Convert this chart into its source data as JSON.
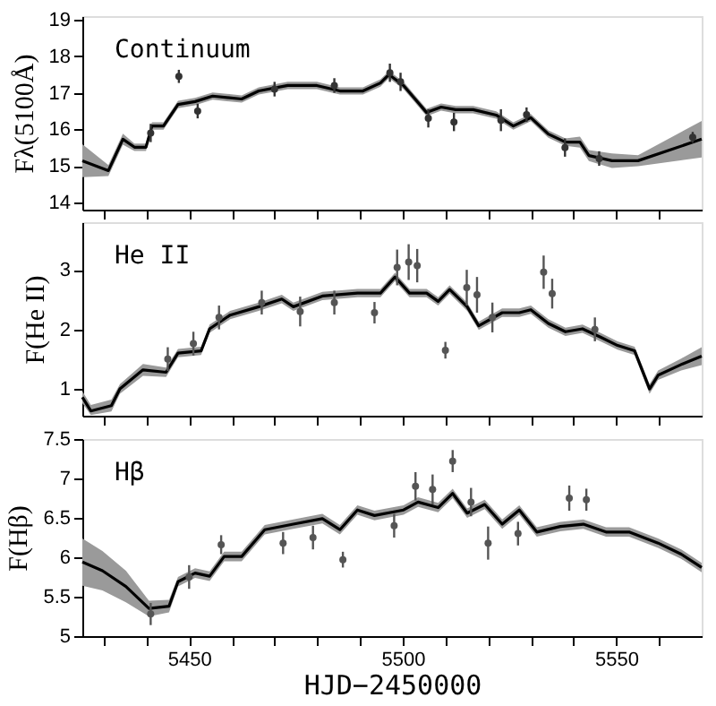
{
  "chart_data": [
    {
      "type": "line",
      "ylabel": "Fλ(5100Å)",
      "annotations": [
        "Continuum"
      ],
      "xlim": [
        5425,
        5570
      ],
      "ylim": [
        13.8,
        19.1
      ],
      "yticks": [
        14,
        15,
        16,
        17,
        18,
        19
      ],
      "xticks": [
        {
          "value": 5430,
          "label": null
        },
        {
          "value": 5440,
          "label": null
        },
        {
          "value": 5450,
          "label": null
        },
        {
          "value": 5460,
          "label": null
        },
        {
          "value": 5470,
          "label": null
        },
        {
          "value": 5480,
          "label": null
        },
        {
          "value": 5490,
          "label": null
        },
        {
          "value": 5500,
          "label": null
        },
        {
          "value": 5510,
          "label": null
        },
        {
          "value": 5520,
          "label": null
        },
        {
          "value": 5530,
          "label": null
        },
        {
          "value": 5540,
          "label": null
        },
        {
          "value": 5550,
          "label": null
        },
        {
          "value": 5560,
          "label": null
        }
      ],
      "tick_labels": "y",
      "grid": false,
      "legend": false,
      "series": [
        {
          "color": "#000000",
          "line_style": "solid",
          "x": [
            5425,
            5431.1,
            5434.5,
            5437.2,
            5439.9,
            5441.3,
            5444,
            5447.4,
            5451.4,
            5455.5,
            5462.3,
            5466.3,
            5473.1,
            5479.9,
            5485.3,
            5490.7,
            5494.8,
            5496.8,
            5500.2,
            5502.9,
            5505.6,
            5509,
            5512.4,
            5516.5,
            5521.9,
            5525.9,
            5530,
            5534.1,
            5538.1,
            5541.5,
            5543.6,
            5549,
            5555.1,
            5570
          ],
          "values": [
            15.14,
            14.87,
            15.73,
            15.51,
            15.51,
            16.09,
            16.09,
            16.68,
            16.76,
            16.91,
            16.83,
            17.05,
            17.2,
            17.2,
            17.05,
            17.05,
            17.27,
            17.5,
            17.2,
            16.83,
            16.46,
            16.61,
            16.54,
            16.54,
            16.39,
            16.09,
            16.32,
            15.87,
            15.65,
            15.65,
            15.28,
            15.14,
            15.14,
            15.73
          ],
          "lower": [
            14.69,
            14.72,
            15.58,
            15.41,
            15.41,
            15.99,
            15.99,
            16.58,
            16.66,
            16.81,
            16.73,
            16.95,
            17.1,
            17.1,
            16.95,
            16.95,
            17.17,
            17.4,
            17.1,
            16.73,
            16.36,
            16.51,
            16.44,
            16.44,
            16.29,
            15.99,
            16.22,
            15.77,
            15.55,
            15.5,
            15.13,
            14.94,
            14.99,
            15.23
          ],
          "upper": [
            15.59,
            15.02,
            15.88,
            15.61,
            15.61,
            16.19,
            16.19,
            16.78,
            16.86,
            17.01,
            16.93,
            17.15,
            17.3,
            17.3,
            17.15,
            17.15,
            17.37,
            17.6,
            17.3,
            16.93,
            16.56,
            16.71,
            16.64,
            16.64,
            16.49,
            16.19,
            16.42,
            15.97,
            15.75,
            15.8,
            15.43,
            15.34,
            15.29,
            16.23
          ]
        },
        {
          "type": "scatter",
          "color": "#333333",
          "marker": "circle",
          "x": [
            5441,
            5447.6,
            5452,
            5470,
            5484,
            5497,
            5499.5,
            5506,
            5512,
            5523,
            5529,
            5538,
            5546,
            5567.9
          ],
          "values": [
            15.9,
            17.45,
            16.5,
            17.1,
            17.2,
            17.55,
            17.3,
            16.3,
            16.2,
            16.25,
            16.4,
            15.5,
            15.2,
            15.78
          ],
          "errors": [
            0.25,
            0.18,
            0.2,
            0.2,
            0.2,
            0.25,
            0.25,
            0.25,
            0.25,
            0.3,
            0.2,
            0.25,
            0.2,
            0.15
          ]
        }
      ]
    },
    {
      "type": "line",
      "ylabel": "F(He II)",
      "annotations": [
        "He II"
      ],
      "xlim": [
        5425,
        5570
      ],
      "ylim": [
        0.55,
        3.8
      ],
      "yticks": [
        1,
        2,
        3
      ],
      "xticks": [
        {
          "value": 5430,
          "label": null
        },
        {
          "value": 5440,
          "label": null
        },
        {
          "value": 5450,
          "label": null
        },
        {
          "value": 5460,
          "label": null
        },
        {
          "value": 5470,
          "label": null
        },
        {
          "value": 5480,
          "label": null
        },
        {
          "value": 5490,
          "label": null
        },
        {
          "value": 5500,
          "label": null
        },
        {
          "value": 5510,
          "label": null
        },
        {
          "value": 5520,
          "label": null
        },
        {
          "value": 5530,
          "label": null
        },
        {
          "value": 5540,
          "label": null
        },
        {
          "value": 5550,
          "label": null
        },
        {
          "value": 5560,
          "label": null
        }
      ],
      "tick_labels": "y",
      "grid": false,
      "legend": false,
      "series": [
        {
          "color": "#000000",
          "line_style": "solid",
          "x": [
            5425,
            5427,
            5431.8,
            5433.8,
            5439.2,
            5444.6,
            5447.4,
            5452.8,
            5454.8,
            5459.6,
            5466.3,
            5471.7,
            5474.4,
            5481.2,
            5489.4,
            5494.8,
            5498.2,
            5501.6,
            5505.6,
            5508.3,
            5511,
            5515.1,
            5517.8,
            5523.3,
            5527.3,
            5530,
            5534.1,
            5538.1,
            5542.1,
            5546.3,
            5550.3,
            5554.3,
            5557.8,
            5559.8,
            5565.2,
            5570
          ],
          "values": [
            0.86,
            0.63,
            0.72,
            1.0,
            1.32,
            1.28,
            1.6,
            1.64,
            2.01,
            2.24,
            2.38,
            2.51,
            2.38,
            2.56,
            2.61,
            2.61,
            2.88,
            2.61,
            2.61,
            2.47,
            2.67,
            2.38,
            2.06,
            2.28,
            2.28,
            2.33,
            2.1,
            1.96,
            2.01,
            1.87,
            1.73,
            1.64,
            1.0,
            1.23,
            1.41,
            1.55
          ],
          "lower": [
            0.76,
            0.56,
            0.62,
            0.92,
            1.22,
            1.2,
            1.53,
            1.57,
            1.94,
            2.17,
            2.31,
            2.44,
            2.31,
            2.49,
            2.54,
            2.54,
            2.81,
            2.54,
            2.54,
            2.4,
            2.6,
            2.31,
            1.99,
            2.21,
            2.21,
            2.26,
            2.03,
            1.89,
            1.94,
            1.8,
            1.66,
            1.57,
            0.92,
            1.15,
            1.31,
            1.4
          ],
          "upper": [
            0.96,
            0.73,
            0.82,
            1.08,
            1.42,
            1.36,
            1.67,
            1.71,
            2.08,
            2.31,
            2.45,
            2.58,
            2.45,
            2.63,
            2.68,
            2.68,
            2.95,
            2.68,
            2.68,
            2.54,
            2.74,
            2.45,
            2.13,
            2.35,
            2.35,
            2.4,
            2.17,
            2.03,
            2.08,
            1.94,
            1.8,
            1.71,
            1.08,
            1.31,
            1.51,
            1.7
          ]
        },
        {
          "type": "scatter",
          "color": "#555555",
          "marker": "circle",
          "x": [
            5445,
            5451,
            5457,
            5467,
            5476,
            5484,
            5493.4,
            5498.7,
            5501.4,
            5503.4,
            5510,
            5515,
            5517.4,
            5521,
            5533,
            5535,
            5545
          ],
          "values": [
            1.5,
            1.76,
            2.2,
            2.45,
            2.3,
            2.45,
            2.28,
            3.04,
            3.13,
            3.07,
            1.65,
            2.7,
            2.58,
            2.2,
            2.96,
            2.6,
            2.0
          ],
          "errors": [
            0.2,
            0.2,
            0.2,
            0.2,
            0.25,
            0.2,
            0.18,
            0.3,
            0.3,
            0.28,
            0.14,
            0.3,
            0.3,
            0.25,
            0.28,
            0.25,
            0.2
          ]
        }
      ]
    },
    {
      "type": "line",
      "ylabel": "F(Hβ)",
      "xlabel": "HJD−2450000",
      "annotations": [
        "Hβ"
      ],
      "xlim": [
        5425,
        5570
      ],
      "ylim": [
        5,
        7.5
      ],
      "yticks": [
        5,
        5.5,
        6,
        6.5,
        7,
        7.5
      ],
      "xticks": [
        {
          "value": 5430,
          "label": null
        },
        {
          "value": 5440,
          "label": null
        },
        5450,
        {
          "value": 5460,
          "label": null
        },
        {
          "value": 5470,
          "label": null
        },
        {
          "value": 5480,
          "label": null
        },
        {
          "value": 5490,
          "label": null
        },
        5500,
        {
          "value": 5510,
          "label": null
        },
        {
          "value": 5520,
          "label": null
        },
        {
          "value": 5530,
          "label": null
        },
        {
          "value": 5540,
          "label": null
        },
        5550,
        {
          "value": 5560,
          "label": null
        }
      ],
      "grid": false,
      "legend": false,
      "series": [
        {
          "color": "#000000",
          "line_style": "solid",
          "x": [
            5425,
            5429.7,
            5435.2,
            5440.6,
            5445.3,
            5447.4,
            5451.4,
            5454.8,
            5458.2,
            5462.3,
            5467.7,
            5474.4,
            5481.2,
            5485.3,
            5489.4,
            5493.4,
            5500.2,
            5503.6,
            5508.3,
            5511.7,
            5515.1,
            5519.2,
            5523.3,
            5527.3,
            5531.4,
            5536.9,
            5542.3,
            5547.6,
            5553,
            5559.8,
            5565.2,
            5570
          ],
          "values": [
            5.94,
            5.83,
            5.63,
            5.35,
            5.38,
            5.69,
            5.8,
            5.76,
            6.01,
            6.01,
            6.35,
            6.42,
            6.49,
            6.35,
            6.6,
            6.53,
            6.6,
            6.7,
            6.63,
            6.81,
            6.56,
            6.67,
            6.42,
            6.6,
            6.32,
            6.39,
            6.42,
            6.32,
            6.32,
            6.18,
            6.04,
            5.87
          ],
          "lower": [
            5.64,
            5.58,
            5.43,
            5.25,
            5.3,
            5.63,
            5.74,
            5.7,
            5.95,
            5.95,
            6.29,
            6.36,
            6.43,
            6.29,
            6.54,
            6.47,
            6.54,
            6.64,
            6.57,
            6.75,
            6.5,
            6.61,
            6.36,
            6.54,
            6.26,
            6.33,
            6.36,
            6.26,
            6.26,
            6.12,
            5.98,
            5.81
          ],
          "upper": [
            6.24,
            6.08,
            5.83,
            5.45,
            5.46,
            5.75,
            5.86,
            5.82,
            6.07,
            6.07,
            6.41,
            6.48,
            6.55,
            6.41,
            6.66,
            6.59,
            6.66,
            6.76,
            6.69,
            6.87,
            6.62,
            6.73,
            6.48,
            6.66,
            6.38,
            6.45,
            6.48,
            6.38,
            6.38,
            6.24,
            6.1,
            5.93
          ]
        },
        {
          "type": "scatter",
          "color": "#555555",
          "marker": "circle",
          "x": [
            5441,
            5450,
            5457.5,
            5472,
            5479,
            5486,
            5498,
            5503,
            5507,
            5511.7,
            5516,
            5520,
            5527,
            5539,
            5543
          ],
          "values": [
            5.28,
            5.75,
            6.16,
            6.18,
            6.25,
            5.97,
            6.4,
            6.9,
            6.86,
            7.22,
            6.7,
            6.18,
            6.3,
            6.75,
            6.73
          ],
          "errors": [
            0.14,
            0.15,
            0.12,
            0.14,
            0.15,
            0.1,
            0.15,
            0.18,
            0.19,
            0.14,
            0.18,
            0.21,
            0.15,
            0.16,
            0.14
          ]
        }
      ]
    }
  ]
}
